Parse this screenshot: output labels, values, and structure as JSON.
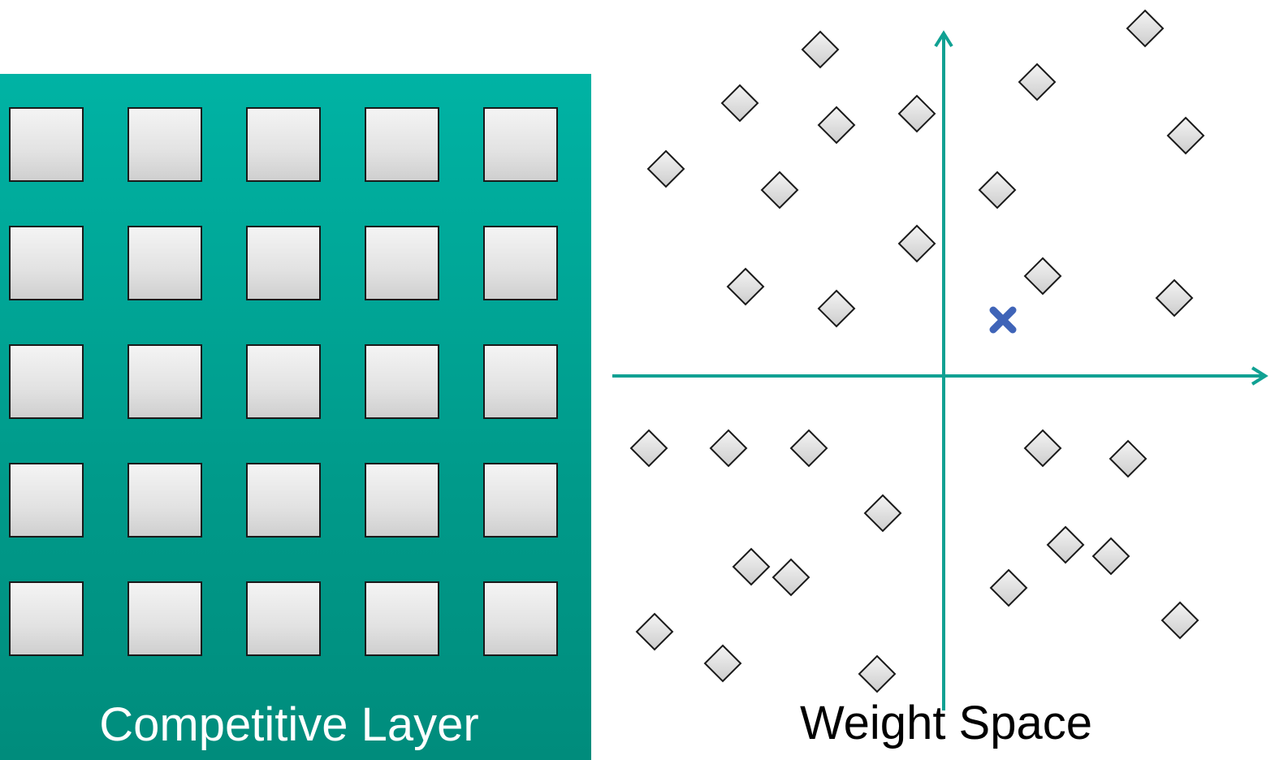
{
  "competitive_layer": {
    "label": "Competitive Layer",
    "grid_rows": 5,
    "grid_cols": 5,
    "panel_color": "#00a897",
    "node_color": "#e0e0e0"
  },
  "weight_space": {
    "label": "Weight Space",
    "axis_color": "#10a193",
    "marker_color": "#3f64b8",
    "sample_icon": "diamond-icon",
    "current_icon": "x-mark-icon"
  }
}
